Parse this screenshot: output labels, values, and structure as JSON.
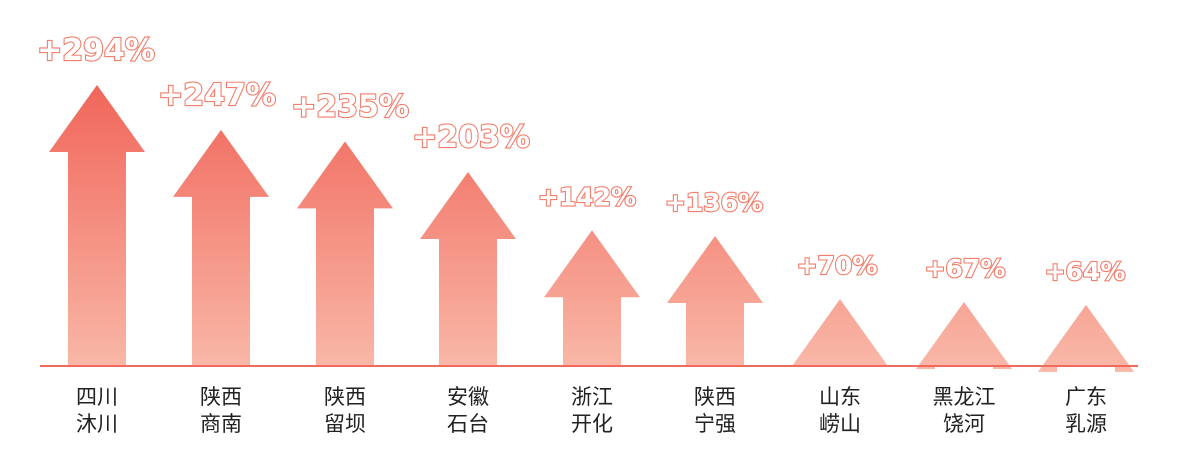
{
  "chart_data": {
    "type": "bar",
    "title": "",
    "xlabel": "",
    "ylabel": "",
    "ylim": [
      0,
      300
    ],
    "grid": false,
    "categories": [
      [
        "四川",
        "沐川"
      ],
      [
        "陕西",
        "商南"
      ],
      [
        "陕西",
        "留坝"
      ],
      [
        "安徽",
        "石台"
      ],
      [
        "浙江",
        "开化"
      ],
      [
        "陕西",
        "宁强"
      ],
      [
        "山东",
        "崂山"
      ],
      [
        "黑龙江",
        "饶河"
      ],
      [
        "广东",
        "乳源"
      ]
    ],
    "values": [
      294,
      247,
      235,
      203,
      142,
      136,
      70,
      67,
      64
    ],
    "value_labels": [
      "+294%",
      "+247%",
      "+235%",
      "+203%",
      "+142%",
      "+136%",
      "+70%",
      "+67%",
      "+64%"
    ]
  },
  "colors": {
    "arrow_top": "#f0665a",
    "arrow_bottom": "#f9b7a7",
    "baseline": "#f06b5d",
    "label_outline": "#f27e6c"
  }
}
